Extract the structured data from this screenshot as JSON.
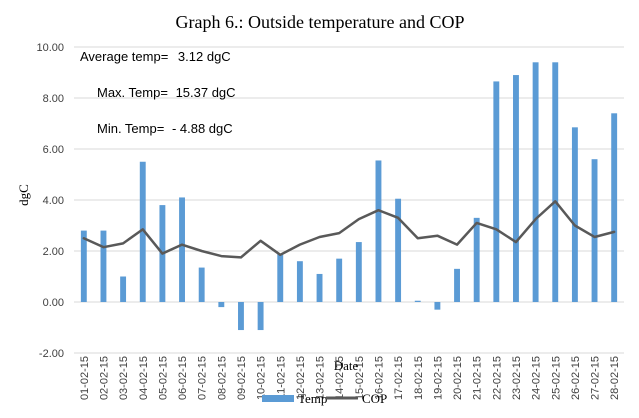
{
  "chart_data": {
    "type": "bar",
    "title": "Graph 6.: Outside temperature and COP",
    "xlabel": "Date",
    "ylabel": "dgC",
    "ylim": [
      -2,
      10
    ],
    "yticks": [
      "-2.00",
      "0.00",
      "2.00",
      "4.00",
      "6.00",
      "8.00",
      "10.00"
    ],
    "ytick_values": [
      -2,
      0,
      2,
      4,
      6,
      8,
      10
    ],
    "grid": true,
    "legend_position": "bottom",
    "categories": [
      "01-02-15",
      "02-02-15",
      "03-02-15",
      "04-02-15",
      "05-02-15",
      "06-02-15",
      "07-02-15",
      "08-02-15",
      "09-02-15",
      "10-02-15",
      "11-02-15",
      "12-02-15",
      "13-02-15",
      "14-02-15",
      "15-02-15",
      "16-02-15",
      "17-02-15",
      "18-02-15",
      "19-02-15",
      "20-02-15",
      "21-02-15",
      "22-02-15",
      "23-02-15",
      "24-02-15",
      "25-02-15",
      "26-02-15",
      "27-02-15",
      "28-02-15"
    ],
    "series": [
      {
        "name": "Temp",
        "kind": "bar",
        "color": "#5b9bd5",
        "values": [
          2.8,
          2.8,
          1.0,
          5.5,
          3.8,
          4.1,
          1.35,
          -0.2,
          -1.1,
          -1.1,
          1.9,
          1.6,
          1.1,
          1.7,
          2.35,
          5.55,
          4.05,
          0.05,
          -0.3,
          1.3,
          3.3,
          8.65,
          8.9,
          9.4,
          9.4,
          6.85,
          5.6,
          7.4
        ]
      },
      {
        "name": "COP",
        "kind": "line",
        "color": "#595959",
        "values": [
          2.5,
          2.15,
          2.3,
          2.85,
          1.9,
          2.25,
          2.0,
          1.8,
          1.75,
          2.4,
          1.85,
          2.25,
          2.55,
          2.7,
          3.25,
          3.6,
          3.3,
          2.5,
          2.6,
          2.25,
          3.1,
          2.85,
          2.35,
          3.25,
          3.95,
          3.0,
          2.55,
          2.75
        ]
      }
    ],
    "annotations": [
      {
        "label": "Average temp=",
        "value": "3.12 dgC"
      },
      {
        "label": "Max. Temp=",
        "value": "15.37 dgC"
      },
      {
        "label": "Min. Temp=",
        "value": "-  4.88 dgC"
      }
    ]
  }
}
